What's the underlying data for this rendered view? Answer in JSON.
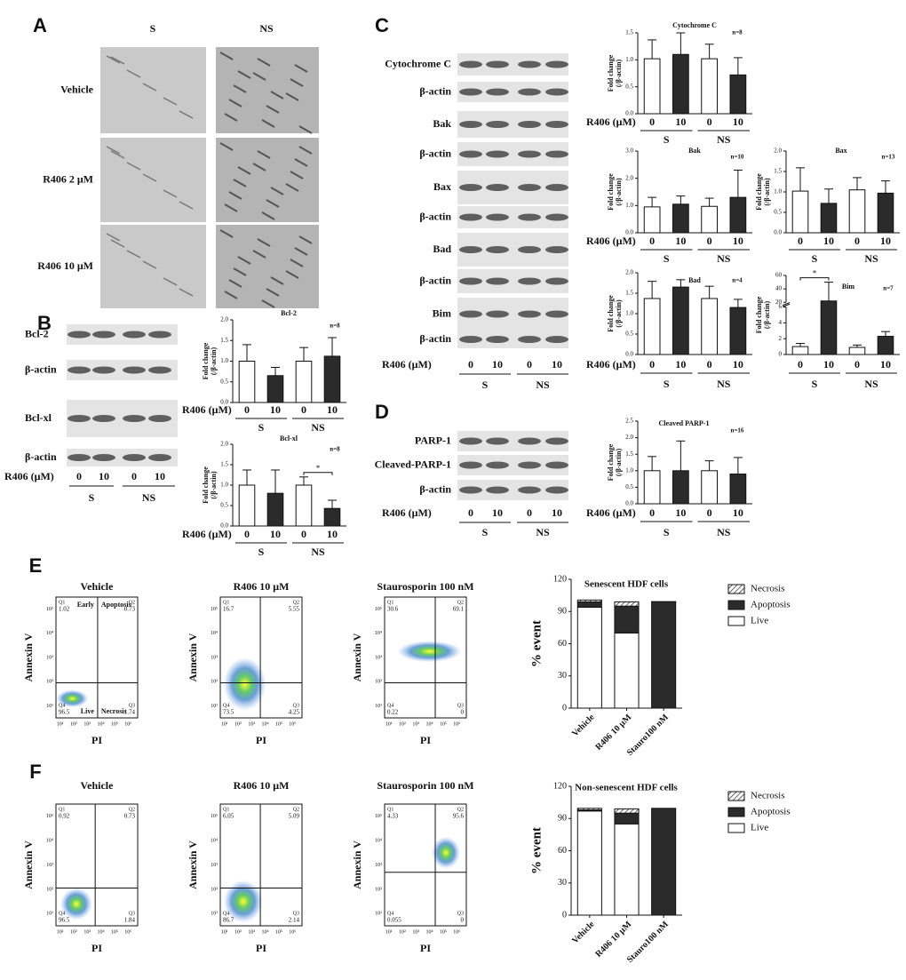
{
  "panel_labels": [
    "A",
    "B",
    "C",
    "D",
    "E",
    "F"
  ],
  "panel_a": {
    "columns": [
      "S",
      "NS"
    ],
    "rows": [
      "Vehicle",
      "R406 2 μM",
      "R406 10 μM"
    ]
  },
  "blots": [
    {
      "rows": [
        "Bcl-2",
        "β-actin",
        "Bcl-xl",
        "β-actin"
      ],
      "dose_label": "R406 (μM)",
      "lanes": [
        "0",
        "10",
        "0",
        "10"
      ],
      "groups": [
        "S",
        "NS"
      ]
    },
    {
      "rows": [
        "Cytochrome C",
        "β-actin",
        "Bak",
        "β-actin",
        "Bax",
        "β-actin",
        "Bad",
        "β-actin",
        "Bim",
        "β-actin"
      ],
      "dose_label": "R406 (μM)",
      "lanes": [
        "0",
        "10",
        "0",
        "10"
      ],
      "groups": [
        "S",
        "NS"
      ]
    },
    {
      "rows": [
        "PARP-1",
        "Cleaved-PARP-1",
        "β-actin"
      ],
      "dose_label": "R406 (μM)",
      "lanes": [
        "0",
        "10",
        "0",
        "10"
      ],
      "groups": [
        "S",
        "NS"
      ]
    }
  ],
  "chart_data": [
    {
      "type": "bar",
      "title": "Cytochrome C",
      "note": "n=8",
      "ylabel": [
        "Fold change",
        "(/β-actin)"
      ],
      "xlabel": "R406 (μM)",
      "categories": [
        "0",
        "10",
        "0",
        "10"
      ],
      "groups": [
        "S",
        "NS"
      ],
      "values": [
        1.02,
        1.1,
        1.02,
        0.72
      ],
      "errors": [
        0.35,
        0.4,
        0.27,
        0.32
      ],
      "colors": [
        "#ffffff",
        "#2b2b2b",
        "#ffffff",
        "#2b2b2b"
      ],
      "ylim": [
        0,
        1.5
      ],
      "yticks": [
        {
          "value": 0,
          "label": "0.0"
        },
        0.5,
        {
          "value": 1,
          "label": "1.0"
        },
        1.5
      ]
    },
    {
      "type": "bar",
      "title": "Bak",
      "note": "n=10",
      "ylabel": [
        "Fold change",
        "(/β-actin)"
      ],
      "xlabel": "R406 (μM)",
      "categories": [
        "0",
        "10",
        "0",
        "10"
      ],
      "groups": [
        "S",
        "NS"
      ],
      "values": [
        0.95,
        1.05,
        0.97,
        1.3
      ],
      "errors": [
        0.35,
        0.3,
        0.3,
        1.0
      ],
      "colors": [
        "#ffffff",
        "#2b2b2b",
        "#ffffff",
        "#2b2b2b"
      ],
      "ylim": [
        0,
        3
      ],
      "yticks": [
        {
          "value": 0,
          "label": "0.0"
        },
        {
          "value": 1,
          "label": "1.0"
        },
        {
          "value": 2,
          "label": "2.0"
        },
        {
          "value": 3,
          "label": "3.0"
        }
      ]
    },
    {
      "type": "bar",
      "title": "Bax",
      "note": "n=13",
      "ylabel": [
        "Fold change",
        "(/β-actin)"
      ],
      "categories": [
        "0",
        "10",
        "0",
        "10"
      ],
      "groups": [
        "S",
        "NS"
      ],
      "values": [
        1.02,
        0.72,
        1.05,
        0.97
      ],
      "errors": [
        0.57,
        0.35,
        0.3,
        0.3
      ],
      "colors": [
        "#ffffff",
        "#2b2b2b",
        "#ffffff",
        "#2b2b2b"
      ],
      "ylim": [
        0,
        2
      ],
      "yticks": [
        {
          "value": 0,
          "label": "0.0"
        },
        0.5,
        {
          "value": 1,
          "label": "1.0"
        },
        1.5,
        {
          "value": 2,
          "label": "2.0"
        }
      ]
    },
    {
      "type": "bar",
      "title": "Bad",
      "note": "n=4",
      "ylabel": [
        "Fold change",
        "(/β-actin)"
      ],
      "xlabel": "R406 (μM)",
      "categories": [
        "0",
        "10",
        "0",
        "10"
      ],
      "groups": [
        "S",
        "NS"
      ],
      "values": [
        1.37,
        1.65,
        1.37,
        1.15
      ],
      "errors": [
        0.42,
        0.18,
        0.3,
        0.2
      ],
      "colors": [
        "#ffffff",
        "#2b2b2b",
        "#ffffff",
        "#2b2b2b"
      ],
      "ylim": [
        0,
        2
      ],
      "yticks": [
        {
          "value": 0,
          "label": "0.0"
        },
        0.5,
        {
          "value": 1,
          "label": "1.0"
        },
        1.5,
        {
          "value": 2,
          "label": "2.0"
        }
      ]
    },
    {
      "type": "bar",
      "title": "Bim",
      "note": "n=7",
      "ylabel": [
        "Fold change",
        "(/β-actin)"
      ],
      "categories": [
        "0",
        "10",
        "0",
        "10"
      ],
      "groups": [
        "S",
        "NS"
      ],
      "values": [
        1.0,
        22,
        0.9,
        2.3
      ],
      "errors": [
        0.4,
        28,
        0.3,
        0.6
      ],
      "colors": [
        "#ffffff",
        "#2b2b2b",
        "#ffffff",
        "#2b2b2b"
      ],
      "ylim": [
        0,
        60
      ],
      "ybreak": [
        6,
        20
      ],
      "yticks": [
        0,
        2,
        4,
        6,
        20,
        40,
        60
      ],
      "significance": {
        "label": "*",
        "categories": [
          0,
          1
        ]
      }
    },
    {
      "type": "bar",
      "title": "Bcl-2",
      "note": "n=8",
      "ylabel": [
        "Fold change",
        "(/β-actin)"
      ],
      "xlabel": "R406 (μM)",
      "categories": [
        "0",
        "10",
        "0",
        "10"
      ],
      "groups": [
        "S",
        "NS"
      ],
      "values": [
        1.0,
        0.65,
        1.0,
        1.12
      ],
      "errors": [
        0.4,
        0.2,
        0.33,
        0.45
      ],
      "colors": [
        "#ffffff",
        "#2b2b2b",
        "#ffffff",
        "#2b2b2b"
      ],
      "ylim": [
        0,
        2
      ],
      "yticks": [
        {
          "value": 0,
          "label": "0.0"
        },
        0.5,
        {
          "value": 1,
          "label": "1.0"
        },
        1.5,
        {
          "value": 2,
          "label": "2.0"
        }
      ]
    },
    {
      "type": "bar",
      "title": "Bcl-xl",
      "note": "n=8",
      "ylabel": [
        "Fold change",
        "(/β-actin)"
      ],
      "xlabel": "R406 (μM)",
      "categories": [
        "0",
        "10",
        "0",
        "10"
      ],
      "groups": [
        "S",
        "NS"
      ],
      "values": [
        1.0,
        0.8,
        1.0,
        0.43
      ],
      "errors": [
        0.37,
        0.57,
        0.2,
        0.2
      ],
      "colors": [
        "#ffffff",
        "#2b2b2b",
        "#ffffff",
        "#2b2b2b"
      ],
      "ylim": [
        0,
        2
      ],
      "yticks": [
        {
          "value": 0,
          "label": "0.0"
        },
        0.5,
        {
          "value": 1,
          "label": "1.0"
        },
        1.5,
        {
          "value": 2,
          "label": "2.0"
        }
      ],
      "significance": {
        "label": "*",
        "categories": [
          2,
          3
        ]
      }
    },
    {
      "type": "bar",
      "title": "Cleaved PARP-1",
      "note": "n=16",
      "ylabel": [
        "Fold change",
        "(/β-actin)"
      ],
      "xlabel": "R406 (μM)",
      "categories": [
        "0",
        "10",
        "0",
        "10"
      ],
      "groups": [
        "S",
        "NS"
      ],
      "values": [
        1.0,
        1.0,
        1.0,
        0.9
      ],
      "errors": [
        0.43,
        0.9,
        0.3,
        0.5
      ],
      "colors": [
        "#ffffff",
        "#2b2b2b",
        "#ffffff",
        "#2b2b2b"
      ],
      "ylim": [
        0,
        2.5
      ],
      "yticks": [
        {
          "value": 0,
          "label": "0.0"
        },
        0.5,
        {
          "value": 1,
          "label": "1.0"
        },
        1.5,
        {
          "value": 2,
          "label": "2.0"
        },
        2.5
      ]
    },
    {
      "type": "stacked_bar",
      "title": "Senescent HDF cells",
      "ylabel": "% event",
      "categories": [
        "Vehicle",
        "R406 10 μM",
        "Stauro100 nM"
      ],
      "series": [
        {
          "name": "Live",
          "color": "#ffffff",
          "values": [
            94,
            70,
            0
          ]
        },
        {
          "name": "Apoptosis",
          "color": "#2b2b2b",
          "values": [
            5,
            25,
            99
          ]
        },
        {
          "name": "Necrosis",
          "color": "hatch",
          "values": [
            1.7,
            4,
            0.2
          ]
        }
      ],
      "ylim": [
        0,
        120
      ],
      "yticks": [
        0,
        30,
        60,
        90,
        120
      ]
    },
    {
      "type": "stacked_bar",
      "title": "Non-senescent HDF cells",
      "ylabel": "% event",
      "categories": [
        "Vehicle",
        "R406 10 μM",
        "Stauro100 nM"
      ],
      "series": [
        {
          "name": "Live",
          "color": "#ffffff",
          "values": [
            97,
            85,
            0
          ]
        },
        {
          "name": "Apoptosis",
          "color": "#2b2b2b",
          "values": [
            1,
            10,
            99.5
          ]
        },
        {
          "name": "Necrosis",
          "color": "hatch",
          "values": [
            1.5,
            4,
            0
          ]
        }
      ],
      "ylim": [
        0,
        120
      ],
      "yticks": [
        0,
        30,
        60,
        90,
        120
      ]
    }
  ],
  "flow_panels": [
    {
      "ylabel": "Annexin V",
      "xlabel": "PI",
      "yticks": [
        "10¹",
        "10²",
        "10³",
        "10⁴",
        "10⁵"
      ],
      "xticks": [
        "10¹",
        "10²",
        "10³",
        "10⁴",
        "10⁵",
        "10⁶"
      ],
      "plots": [
        {
          "title": "Vehicle",
          "quadrants": [
            {
              "name": "Q1",
              "value": 1.02
            },
            {
              "name": "Q2",
              "value": 0.73
            },
            {
              "name": "Q3",
              "value": 1.74
            },
            {
              "name": "Q4",
              "value": 96.5
            }
          ],
          "gate_labels": [
            "Early",
            "Apoptosis",
            "Live",
            "Necrosis"
          ]
        },
        {
          "title": "R406 10 μM",
          "quadrants": [
            {
              "name": "Q1",
              "value": 16.7
            },
            {
              "name": "Q2",
              "value": 5.55
            },
            {
              "name": "Q3",
              "value": 4.25
            },
            {
              "name": "Q4",
              "value": 73.5
            }
          ]
        },
        {
          "title": "Staurosporin 100 nM",
          "quadrants": [
            {
              "name": "Q1",
              "value": 30.6
            },
            {
              "name": "Q2",
              "value": 69.1
            },
            {
              "name": "Q3",
              "value": 0
            },
            {
              "name": "Q4",
              "value": 0.22
            }
          ]
        }
      ]
    },
    {
      "ylabel": "Annexin V",
      "xlabel": "PI",
      "yticks": [
        "10¹",
        "10²",
        "10³",
        "10⁴",
        "10⁵"
      ],
      "xticks": [
        "10¹",
        "10²",
        "10³",
        "10⁴",
        "10⁵",
        "10⁶"
      ],
      "plots": [
        {
          "title": "Vehicle",
          "quadrants": [
            {
              "name": "Q1",
              "value": 0.92
            },
            {
              "name": "Q2",
              "value": 0.73
            },
            {
              "name": "Q3",
              "value": 1.84
            },
            {
              "name": "Q4",
              "value": 96.5
            }
          ]
        },
        {
          "title": "R406 10 μM",
          "quadrants": [
            {
              "name": "Q1",
              "value": 6.05
            },
            {
              "name": "Q2",
              "value": 5.09
            },
            {
              "name": "Q3",
              "value": 2.14
            },
            {
              "name": "Q4",
              "value": 86.7
            }
          ]
        },
        {
          "title": "Staurosporin 100 nM",
          "quadrants": [
            {
              "name": "Q1",
              "value": 4.33
            },
            {
              "name": "Q2",
              "value": 95.6
            },
            {
              "name": "Q3",
              "value": 0
            },
            {
              "name": "Q4",
              "value": 0.055
            }
          ]
        }
      ]
    }
  ]
}
